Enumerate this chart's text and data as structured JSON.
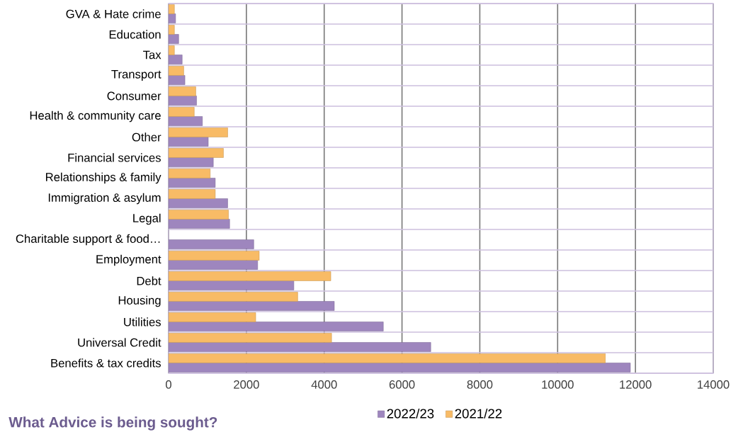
{
  "chart_data": {
    "type": "bar",
    "orientation": "horizontal",
    "title": "What Advice is being sought?",
    "categories": [
      "GVA & Hate crime",
      "Education",
      "Tax",
      "Transport",
      "Consumer",
      "Health & community care",
      "Other",
      "Financial services",
      "Relationships & family",
      "Immigration & asylum",
      "Legal",
      "Charitable support & food…",
      "Employment",
      "Debt",
      "Housing",
      "Utilities",
      "Universal Credit",
      "Benefits & tax credits"
    ],
    "series": [
      {
        "name": "2022/23",
        "color": "#9e86be",
        "values": [
          180,
          260,
          350,
          420,
          720,
          870,
          1020,
          1150,
          1200,
          1520,
          1570,
          2190,
          2290,
          3220,
          4260,
          5520,
          6740,
          11870
        ]
      },
      {
        "name": "2021/22",
        "color": "#f8bb66",
        "values": [
          150,
          150,
          150,
          390,
          700,
          660,
          1520,
          1410,
          1070,
          1200,
          1540,
          null,
          2330,
          4170,
          3320,
          2240,
          4190,
          11230
        ]
      }
    ],
    "xlim": [
      0,
      14000
    ],
    "xticks": [
      0,
      2000,
      4000,
      6000,
      8000,
      10000,
      12000,
      14000
    ],
    "grid": true,
    "legend": "bottom"
  }
}
